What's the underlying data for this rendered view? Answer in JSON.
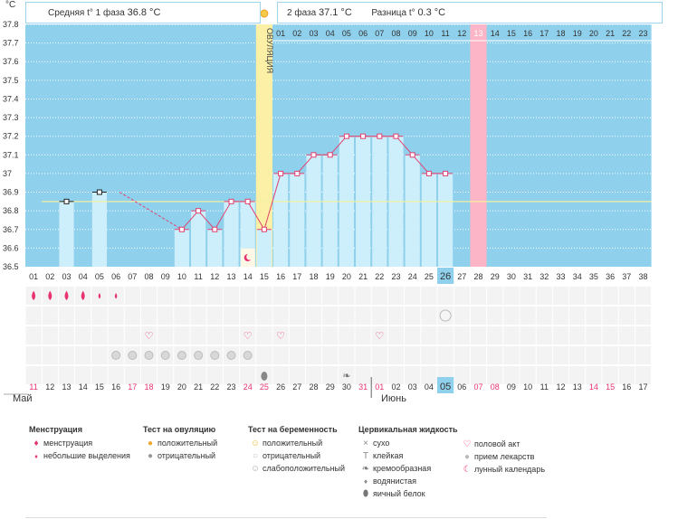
{
  "header": {
    "phase1_label": "Средняя t° 1 фаза",
    "phase1_value": "36.8 °C",
    "phase2_label": "2 фаза",
    "phase2_value": "37.1 °C",
    "diff_label": "Разница t°",
    "diff_value": "0.3 °C",
    "unit": "°С",
    "ovulation_label": "ОВУЛЯЦИЯ"
  },
  "chart_data": {
    "type": "line",
    "y_ticks": [
      "37.8",
      "37.7",
      "37.6",
      "37.5",
      "37.4",
      "37.3",
      "37.2",
      "37.1",
      "37",
      "36.9",
      "36.8",
      "36.7",
      "36.6",
      "36.5"
    ],
    "ylim": [
      36.5,
      37.8
    ],
    "cycle_days": [
      "01",
      "02",
      "03",
      "04",
      "05",
      "06",
      "07",
      "08",
      "09",
      "10",
      "11",
      "12",
      "13",
      "14",
      "15",
      "16",
      "17",
      "18",
      "19",
      "20",
      "21",
      "22",
      "23",
      "24",
      "25",
      "26",
      "27",
      "28",
      "29",
      "30",
      "31",
      "32",
      "33",
      "34",
      "35",
      "36",
      "37",
      "38"
    ],
    "after_ovulation_days": [
      "01",
      "02",
      "03",
      "04",
      "05",
      "06",
      "07",
      "08",
      "09",
      "10",
      "11",
      "12",
      "13",
      "14",
      "15",
      "16",
      "17",
      "18",
      "19",
      "20",
      "21",
      "22",
      "23"
    ],
    "calendar_days": [
      "11",
      "12",
      "13",
      "14",
      "15",
      "16",
      "17",
      "18",
      "19",
      "20",
      "21",
      "22",
      "23",
      "24",
      "25",
      "26",
      "27",
      "28",
      "29",
      "30",
      "31",
      "01",
      "02",
      "03",
      "04",
      "05",
      "06",
      "07",
      "08",
      "09",
      "10",
      "11",
      "12",
      "13",
      "14",
      "15",
      "16",
      "17"
    ],
    "red_calendar_indices": [
      0,
      6,
      7,
      13,
      14,
      20,
      21,
      27,
      28,
      34,
      35
    ],
    "months": [
      "Май",
      "Июнь"
    ],
    "temperatures": [
      null,
      null,
      36.85,
      null,
      36.9,
      null,
      null,
      null,
      null,
      36.7,
      36.8,
      36.7,
      36.85,
      36.85,
      36.7,
      37.0,
      37.0,
      37.1,
      37.1,
      37.2,
      37.2,
      37.2,
      37.2,
      37.1,
      37.0,
      37.0,
      null,
      null,
      null,
      null,
      null,
      null,
      null,
      null,
      null,
      null,
      null,
      null
    ],
    "dashed_segments": [
      [
        5,
        9
      ]
    ],
    "coverline": 36.85,
    "ovulation_day_index": 14,
    "highlight_day_index": 27,
    "today_index": 25,
    "today_calendar": "05",
    "menstruation": [
      "heavy",
      "heavy",
      "heavy",
      "heavy",
      "light",
      "light"
    ],
    "intercourse_days": [
      7,
      13,
      15,
      21
    ],
    "medicine_days": [
      5,
      6,
      7,
      8,
      9,
      10,
      11,
      12,
      13
    ],
    "pregnancy_neg_day": 25,
    "lunar_day": 13,
    "cervical_days": [
      [
        14,
        "egg"
      ],
      [
        19,
        "creamy"
      ]
    ]
  },
  "legend": {
    "menstruation": {
      "title": "Менструация",
      "items": [
        "менструация",
        "небольшие выделения"
      ]
    },
    "ovulation_test": {
      "title": "Тест на овуляцию",
      "items": [
        "положительный",
        "отрицательный"
      ]
    },
    "pregnancy_test": {
      "title": "Тест на беременность",
      "items": [
        "положительный",
        "отрицательный",
        "слабоположительный"
      ]
    },
    "cervical": {
      "title": "Цервикальная жидкость",
      "items": [
        "сухо",
        "клейкая",
        "кремообразная",
        "водянистая",
        "яичный белок"
      ]
    },
    "other": {
      "items": [
        "половой акт",
        "прием лекарств",
        "лунный календарь"
      ]
    }
  }
}
